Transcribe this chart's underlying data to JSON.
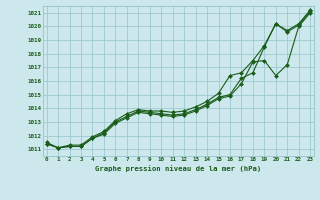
{
  "title": "Graphe pression niveau de la mer (hPa)",
  "bg_color": "#cce8ec",
  "line_color": "#1a5c1a",
  "grid_color": "#9dc8d0",
  "x_labels": [
    "0",
    "1",
    "2",
    "3",
    "4",
    "5",
    "6",
    "7",
    "8",
    "9",
    "10",
    "11",
    "12",
    "13",
    "14",
    "15",
    "16",
    "17",
    "18",
    "19",
    "20",
    "21",
    "22",
    "23"
  ],
  "y_ticks": [
    1011,
    1012,
    1013,
    1014,
    1015,
    1016,
    1017,
    1018,
    1019,
    1020,
    1021
  ],
  "ylim": [
    1010.5,
    1021.5
  ],
  "xlim": [
    -0.3,
    23.3
  ],
  "series1": [
    1011.4,
    1011.1,
    1011.2,
    1011.2,
    1011.8,
    1012.2,
    1013.0,
    1013.4,
    1013.8,
    1013.7,
    1013.6,
    1013.5,
    1013.6,
    1013.9,
    1014.3,
    1014.8,
    1015.0,
    1016.2,
    1016.6,
    1018.5,
    1020.2,
    1019.6,
    1020.1,
    1021.1
  ],
  "series2": [
    1011.5,
    1011.1,
    1011.3,
    1011.3,
    1011.9,
    1012.3,
    1013.1,
    1013.6,
    1013.9,
    1013.8,
    1013.8,
    1013.7,
    1013.8,
    1014.1,
    1014.5,
    1015.1,
    1016.4,
    1016.6,
    1017.5,
    1018.6,
    1020.2,
    1019.7,
    1020.2,
    1021.2
  ],
  "series3": [
    1011.4,
    1011.1,
    1011.2,
    1011.2,
    1011.8,
    1012.1,
    1012.9,
    1013.3,
    1013.7,
    1013.6,
    1013.5,
    1013.4,
    1013.5,
    1013.8,
    1014.2,
    1014.7,
    1014.9,
    1015.8,
    1017.4,
    1017.5,
    1016.4,
    1017.2,
    1020.0,
    1021.0
  ]
}
